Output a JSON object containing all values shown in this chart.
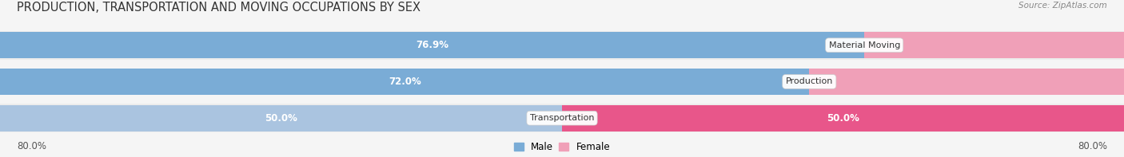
{
  "title": "PRODUCTION, TRANSPORTATION AND MOVING OCCUPATIONS BY SEX",
  "source": "Source: ZipAtlas.com",
  "categories": [
    "Material Moving",
    "Production",
    "Transportation"
  ],
  "male_values": [
    76.9,
    72.0,
    50.0
  ],
  "female_values": [
    23.1,
    28.0,
    50.0
  ],
  "male_color_row0": "#7aacd6",
  "male_color_row1": "#7aacd6",
  "male_color_row2": "#aac4e0",
  "female_color_row0": "#f0a0b8",
  "female_color_row1": "#f0a0b8",
  "female_color_row2": "#e8568a",
  "male_label": "Male",
  "female_label": "Female",
  "axis_label_left": "80.0%",
  "axis_label_right": "80.0%",
  "background_color": "#f5f5f5",
  "row_bg_even": "#ececec",
  "row_bg_odd": "#f5f5f5",
  "title_fontsize": 10.5,
  "label_fontsize": 8.5,
  "bar_total": 100.0,
  "male_text_colors": [
    "white",
    "white",
    "white"
  ],
  "female_text_colors": [
    "#555555",
    "#555555",
    "white"
  ]
}
